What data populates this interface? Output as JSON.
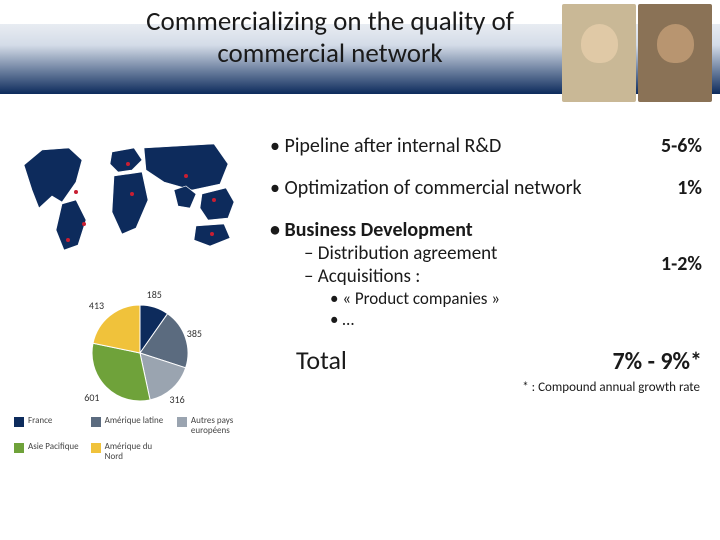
{
  "title": "Commercializing on the quality of commercial network",
  "bullets": {
    "pipeline": {
      "text": "Pipeline after internal R&D",
      "pct": "5-6%"
    },
    "optimization": {
      "text": "Optimization of commercial network",
      "pct": "1%"
    },
    "bizdev": {
      "heading": "Business Development",
      "items": [
        "Distribution agreement",
        "Acquisitions :"
      ],
      "subitems": [
        "« Product companies »",
        "…"
      ],
      "pct": "1-2%"
    }
  },
  "total": {
    "label": "Total",
    "value": "7% - 9%*"
  },
  "footnote": "* : Compound annual growth rate",
  "map": {
    "land_fill": "#0d2b5c",
    "land_stroke": "#ffffff",
    "highlight": "#c81e32"
  },
  "pie": {
    "type": "pie",
    "background": "#ffffff",
    "label_fontsize": 10,
    "slices": [
      {
        "label": "France",
        "value": 185,
        "color": "#0d2b5c"
      },
      {
        "label": "Amérique latine",
        "value": 385,
        "color": "#5b6b7f"
      },
      {
        "label": "Autres pays européens",
        "value": 316,
        "color": "#9aa4b0"
      },
      {
        "label": "Asie Pacifique",
        "value": 601,
        "color": "#6fa23a"
      },
      {
        "label": "Amérique du Nord",
        "value": 413,
        "color": "#f0c23b"
      }
    ],
    "legend_cols": 3
  }
}
